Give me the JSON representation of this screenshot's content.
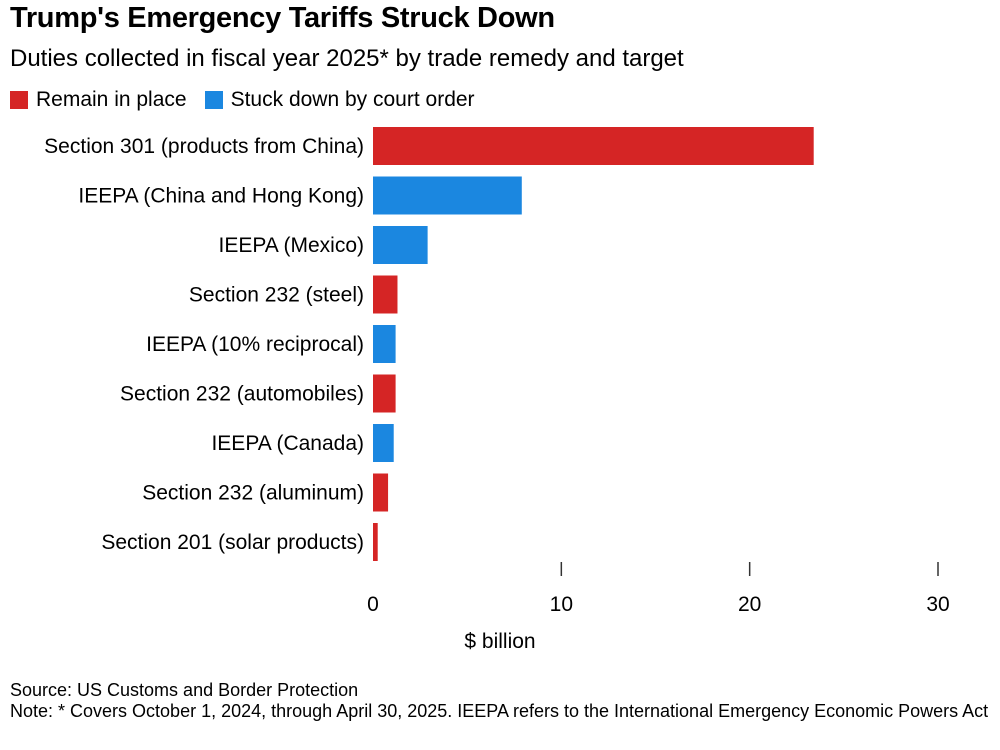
{
  "title": "Trump's Emergency Tariffs Struck Down",
  "subtitle": "Duties collected in fiscal year 2025* by trade remedy and target",
  "legend": [
    {
      "label": "Remain in place",
      "color": "#d52525"
    },
    {
      "label": "Stuck down by court order",
      "color": "#1b87e0"
    }
  ],
  "source": "Source: US Customs and Border Protection",
  "note": "Note: * Covers October 1, 2024, through April 30, 2025. IEEPA refers to the International Emergency Economic Powers Act",
  "chart_data": {
    "type": "bar",
    "orientation": "horizontal",
    "categories": [
      "Section 301 (products from China)",
      "IEEPA (China and Hong Kong)",
      "IEEPA (Mexico)",
      "Section 232 (steel)",
      "IEEPA (10% reciprocal)",
      "Section 232 (automobiles)",
      "IEEPA (Canada)",
      "Section 232 (aluminum)",
      "Section 201 (solar products)"
    ],
    "values": [
      23.4,
      7.9,
      2.9,
      1.3,
      1.2,
      1.2,
      1.1,
      0.8,
      0.25
    ],
    "status": [
      "remain",
      "struck",
      "struck",
      "remain",
      "struck",
      "remain",
      "struck",
      "remain",
      "remain"
    ],
    "colors": {
      "remain": "#d52525",
      "struck": "#1b87e0"
    },
    "xlabel": "$ billion",
    "xlim": [
      0,
      30
    ],
    "xticks": [
      0,
      10,
      20,
      30
    ],
    "grid": false
  }
}
